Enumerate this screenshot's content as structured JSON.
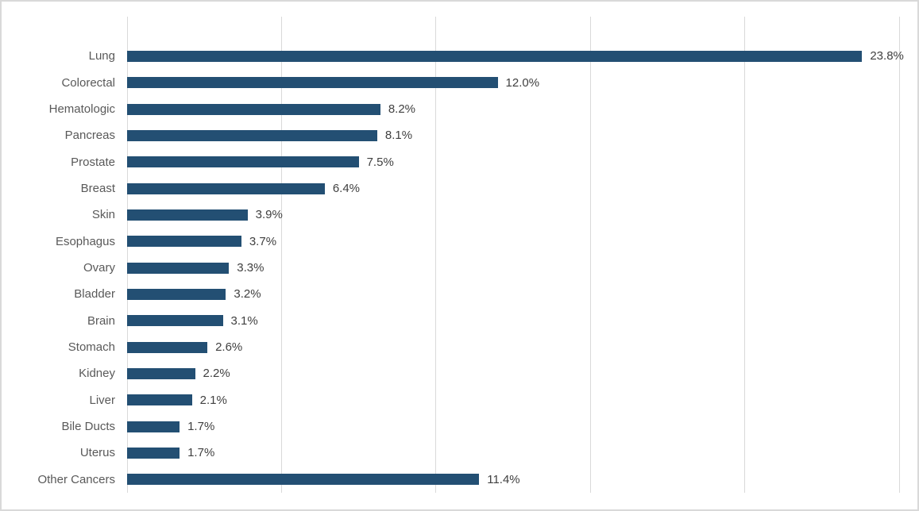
{
  "chart_data": {
    "type": "bar",
    "orientation": "horizontal",
    "title": "",
    "xlabel": "",
    "ylabel": "",
    "categories": [
      "Lung",
      "Colorectal",
      "Hematologic",
      "Pancreas",
      "Prostate",
      "Breast",
      "Skin",
      "Esophagus",
      "Ovary",
      "Bladder",
      "Brain",
      "Stomach",
      "Kidney",
      "Liver",
      "Bile Ducts",
      "Uterus",
      "Other Cancers"
    ],
    "values": [
      23.8,
      12.0,
      8.2,
      8.1,
      7.5,
      6.4,
      3.9,
      3.7,
      3.3,
      3.2,
      3.1,
      2.6,
      2.2,
      2.1,
      1.7,
      1.7,
      11.4
    ],
    "labels": [
      "23.8%",
      "12.0%",
      "8.2%",
      "8.1%",
      "7.5%",
      "6.4%",
      "3.9%",
      "3.7%",
      "3.3%",
      "3.2%",
      "3.1%",
      "2.6%",
      "2.2%",
      "2.1%",
      "1.7%",
      "1.7%",
      "11.4%"
    ],
    "xlim": [
      0,
      25
    ],
    "gridline_interval": 5,
    "grid": true,
    "legend": false,
    "data_labels": true,
    "axis_tick_labels_shown": false
  },
  "colors": {
    "bar": "#234F73",
    "gridline": "#d9d9d9",
    "category_label": "#595959",
    "value_label": "#404040",
    "chart_border": "#d9d9d9",
    "background": "#ffffff"
  }
}
